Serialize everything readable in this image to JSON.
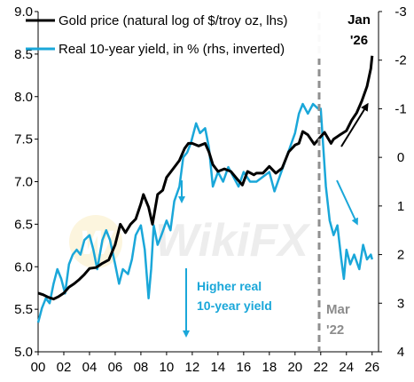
{
  "chart_data": {
    "type": "line",
    "x_ticks": [
      "00",
      "02",
      "04",
      "06",
      "08",
      "10",
      "12",
      "14",
      "16",
      "18",
      "20",
      "22",
      "24",
      "26"
    ],
    "x_range": [
      2000,
      2026.5
    ],
    "y_left": {
      "ticks": [
        "5.0",
        "5.5",
        "6.0",
        "6.5",
        "7.0",
        "7.5",
        "8.0",
        "8.5",
        "9.0"
      ],
      "range": [
        5.0,
        9.0
      ]
    },
    "y_right": {
      "ticks": [
        "-3",
        "-2",
        "-1",
        "0",
        "1",
        "2",
        "3",
        "4"
      ],
      "range": [
        -3,
        4
      ],
      "inverted": true
    },
    "legend": [
      {
        "label": "Gold price (natural log of $/troy oz, lhs)",
        "color": "#000000"
      },
      {
        "label": "Real 10-year yield, in % (rhs, inverted)",
        "color": "#1aa7d9"
      }
    ],
    "series": [
      {
        "name": "Gold price (natural log of $/troy oz, lhs)",
        "axis": "left",
        "color": "#000000",
        "x": [
          2000.0,
          2000.4,
          2000.8,
          2001.2,
          2001.6,
          2002.0,
          2002.4,
          2002.8,
          2003.2,
          2003.6,
          2004.0,
          2004.5,
          2005.0,
          2005.5,
          2006.0,
          2006.4,
          2006.8,
          2007.2,
          2007.6,
          2008.0,
          2008.2,
          2008.6,
          2008.9,
          2009.3,
          2009.7,
          2010.0,
          2010.5,
          2011.0,
          2011.4,
          2011.7,
          2012.0,
          2012.5,
          2013.0,
          2013.3,
          2013.6,
          2014.0,
          2014.5,
          2015.0,
          2015.5,
          2015.9,
          2016.3,
          2016.8,
          2017.0,
          2017.5,
          2018.0,
          2018.5,
          2019.0,
          2019.5,
          2020.0,
          2020.3,
          2020.6,
          2021.0,
          2021.5,
          2022.0,
          2022.3,
          2022.8,
          2023.0,
          2023.5,
          2024.0,
          2024.4,
          2024.8,
          2025.2,
          2025.6,
          2025.9,
          2026.0
        ],
        "y": [
          5.69,
          5.67,
          5.64,
          5.62,
          5.65,
          5.69,
          5.76,
          5.8,
          5.85,
          5.91,
          5.98,
          5.99,
          6.04,
          6.08,
          6.26,
          6.5,
          6.4,
          6.5,
          6.56,
          6.74,
          6.85,
          6.7,
          6.5,
          6.85,
          6.9,
          7.05,
          7.15,
          7.25,
          7.39,
          7.45,
          7.45,
          7.42,
          7.45,
          7.35,
          7.2,
          7.12,
          7.15,
          7.12,
          7.03,
          6.96,
          7.12,
          7.08,
          7.1,
          7.1,
          7.18,
          7.1,
          7.16,
          7.35,
          7.43,
          7.45,
          7.59,
          7.55,
          7.44,
          7.53,
          7.58,
          7.45,
          7.5,
          7.55,
          7.6,
          7.72,
          7.81,
          7.95,
          8.12,
          8.33,
          8.48
        ]
      },
      {
        "name": "Real 10-year yield, in % (rhs, inverted)",
        "axis": "right",
        "color": "#1aa7d9",
        "x": [
          2000.0,
          2000.3,
          2000.6,
          2000.9,
          2001.2,
          2001.5,
          2001.8,
          2002.1,
          2002.4,
          2002.7,
          2003.0,
          2003.3,
          2003.6,
          2004.0,
          2004.3,
          2004.6,
          2005.0,
          2005.3,
          2005.6,
          2006.0,
          2006.3,
          2006.6,
          2007.0,
          2007.3,
          2007.6,
          2008.0,
          2008.3,
          2008.6,
          2008.8,
          2009.0,
          2009.3,
          2009.6,
          2010.0,
          2010.3,
          2010.6,
          2011.0,
          2011.3,
          2011.6,
          2011.9,
          2012.3,
          2012.6,
          2013.0,
          2013.3,
          2013.6,
          2014.0,
          2014.4,
          2014.8,
          2015.2,
          2015.6,
          2016.0,
          2016.5,
          2017.0,
          2017.5,
          2018.0,
          2018.4,
          2018.8,
          2019.2,
          2019.6,
          2020.0,
          2020.3,
          2020.6,
          2021.0,
          2021.4,
          2021.8,
          2022.0,
          2022.2,
          2022.4,
          2022.7,
          2023.0,
          2023.3,
          2023.6,
          2023.8,
          2024.0,
          2024.3,
          2024.6,
          2025.0,
          2025.3,
          2025.6,
          2025.9,
          2026.0
        ],
        "y": [
          3.4,
          3.1,
          2.9,
          3.0,
          2.6,
          2.3,
          2.5,
          2.8,
          2.2,
          2.0,
          1.9,
          2.0,
          1.7,
          1.6,
          1.9,
          2.3,
          1.7,
          1.5,
          1.7,
          2.2,
          2.6,
          2.3,
          2.4,
          2.1,
          1.6,
          1.4,
          1.9,
          2.9,
          2.3,
          1.4,
          1.8,
          1.6,
          1.3,
          1.5,
          0.9,
          0.6,
          0.0,
          -0.1,
          -0.3,
          -0.7,
          -0.5,
          -0.6,
          -0.2,
          0.6,
          0.3,
          0.5,
          0.2,
          0.4,
          0.6,
          0.3,
          0.5,
          0.5,
          0.4,
          0.3,
          0.7,
          0.4,
          0.1,
          -0.2,
          -0.5,
          -0.9,
          -1.1,
          -0.9,
          -1.1,
          -1.0,
          -1.0,
          -0.2,
          0.6,
          1.3,
          1.6,
          1.4,
          2.1,
          2.5,
          1.9,
          2.2,
          2.0,
          2.3,
          1.8,
          2.1,
          2.0,
          2.1
        ]
      }
    ],
    "annotations": {
      "higher_real_yield_line1": "Higher real",
      "higher_real_yield_line2": "10-year yield",
      "mar22_line1": "Mar",
      "mar22_line2": "'22",
      "jan26_line1": "Jan",
      "jan26_line2": "'26",
      "watermark": "WikiFX",
      "watermark_badge": "W"
    },
    "colors": {
      "gold_series": "#000000",
      "yield_series": "#1aa7d9",
      "vline": "#909090",
      "mar22_text": "#8c8c8c",
      "higher_text": "#1aa7d9"
    }
  }
}
